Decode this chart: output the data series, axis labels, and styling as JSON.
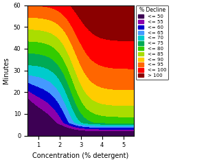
{
  "title": "",
  "xlabel": "Concentration (% detergent)",
  "ylabel": "Minutes",
  "legend_title": "% Decline",
  "legend_labels": [
    "<= 50",
    "<= 55",
    "<= 60",
    "<= 65",
    "<= 70",
    "<= 75",
    "<= 80",
    "<= 85",
    "<= 90",
    "<= 95",
    "<= 100",
    "> 100"
  ],
  "legend_colors": [
    "#3d0054",
    "#8b00aa",
    "#0000cd",
    "#4499ff",
    "#00cccc",
    "#00aa55",
    "#33cc00",
    "#aadd00",
    "#ffcc00",
    "#ff6600",
    "#ff0000",
    "#8b0000"
  ],
  "xmin": 0.5,
  "xmax": 5.5,
  "ymin": 0,
  "ymax": 60,
  "xticks": [
    1,
    2,
    3,
    4,
    5
  ],
  "yticks": [
    0,
    10,
    20,
    30,
    40,
    50,
    60
  ]
}
